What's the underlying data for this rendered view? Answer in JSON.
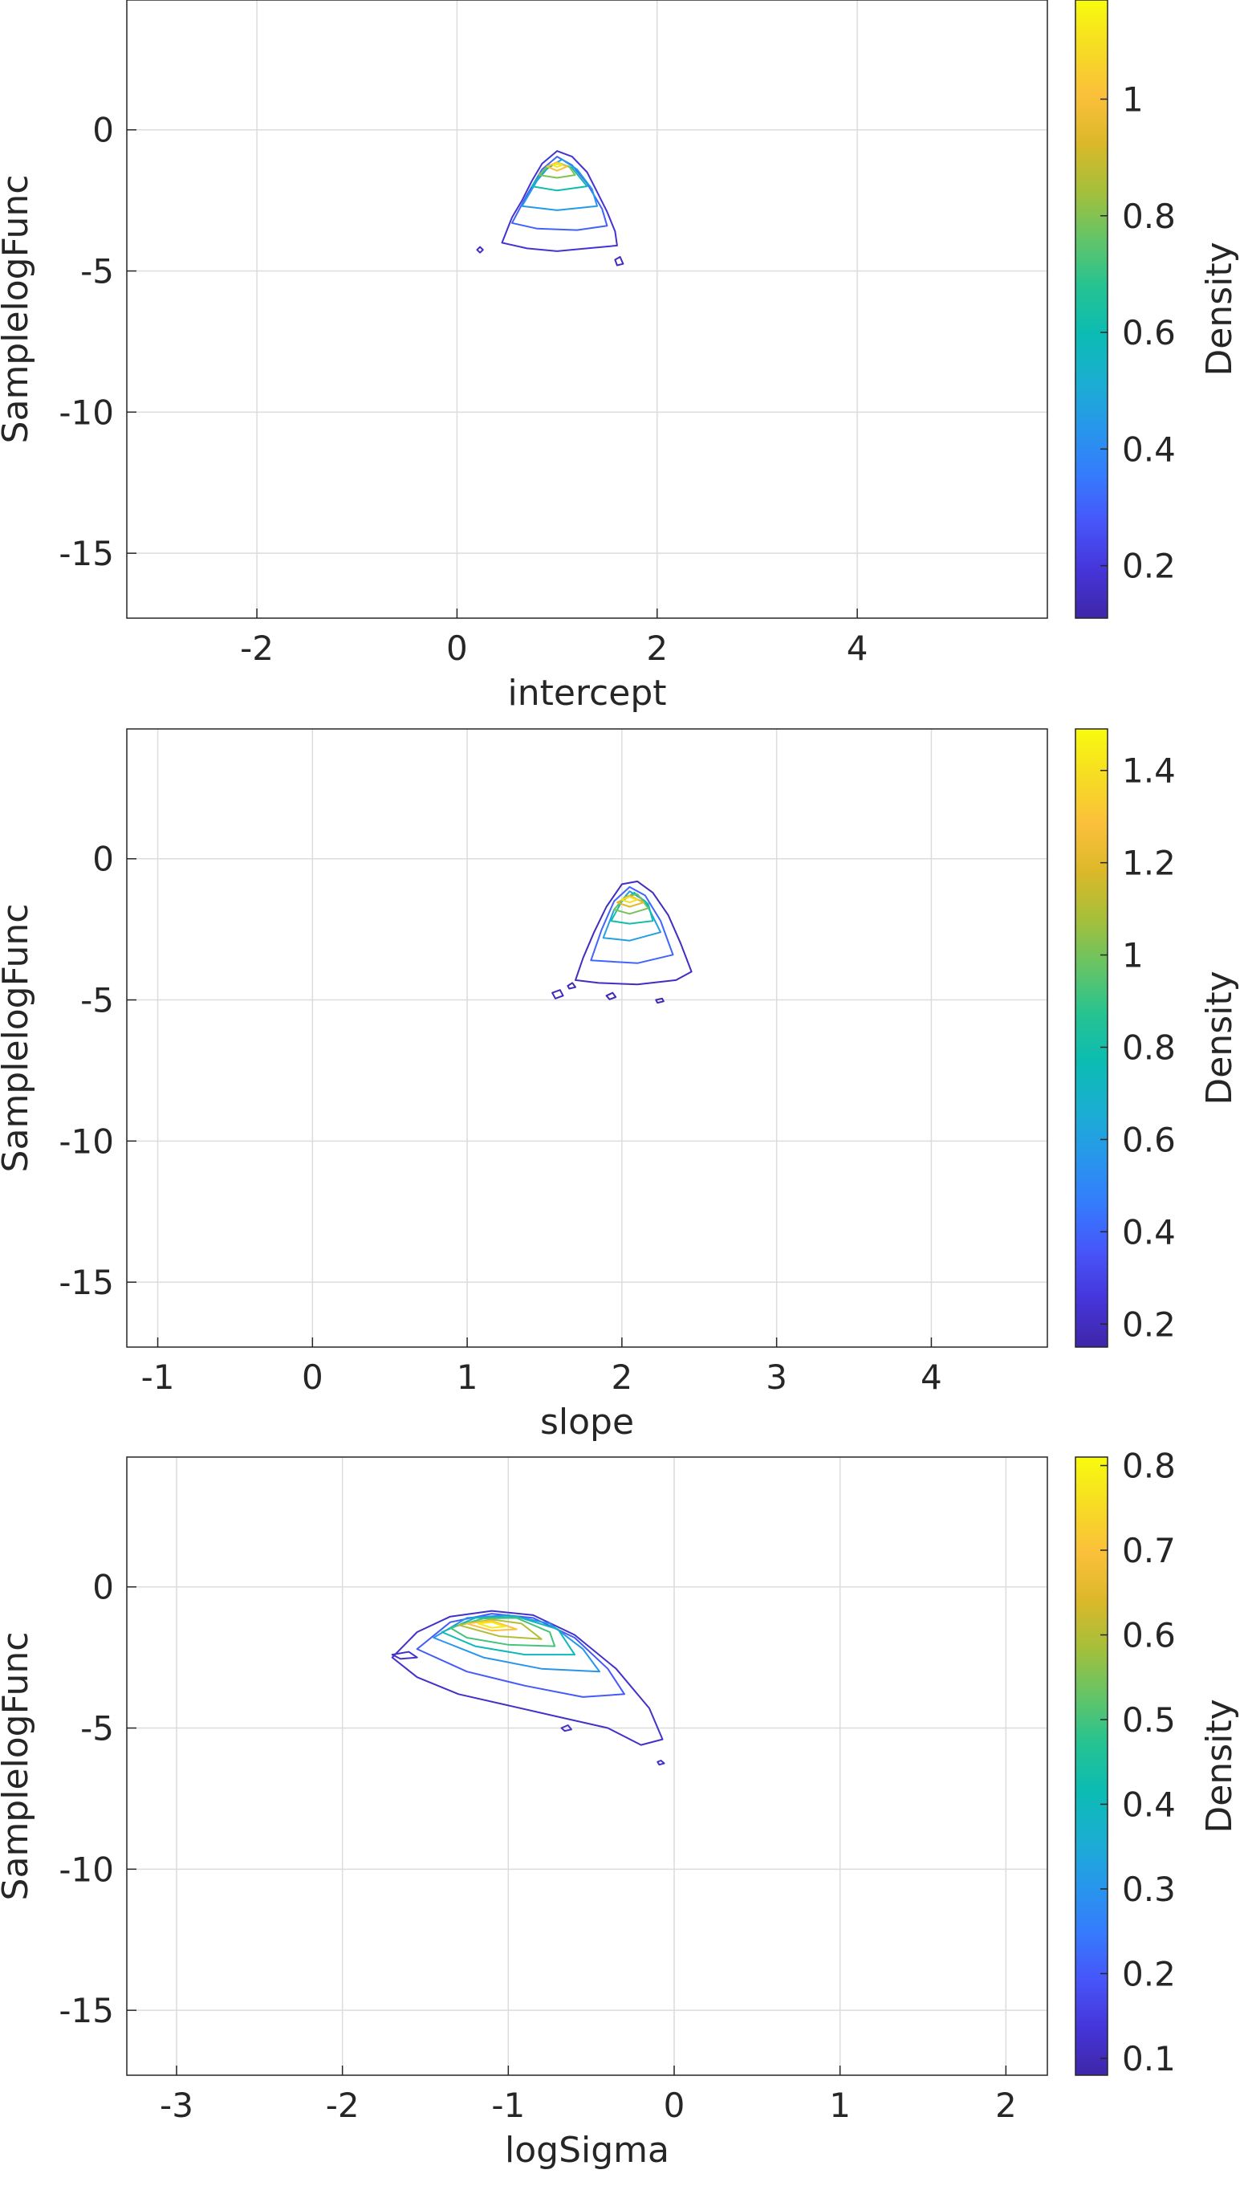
{
  "colormap": [
    "#3e26a8",
    "#4535d9",
    "#4755f9",
    "#357bfd",
    "#2797eb",
    "#1aafd1",
    "#0cbcb2",
    "#26c391",
    "#65c466",
    "#a6bf3a",
    "#dcb829",
    "#fbc03b",
    "#f6dc23",
    "#f9fb0e"
  ],
  "chart_data": [
    {
      "type": "contour",
      "xlabel": "intercept",
      "ylabel": "SamplelogFunc",
      "colorbar_label": "Density",
      "xlim": [
        -3.3,
        5.9
      ],
      "ylim": [
        -17.3,
        4.6
      ],
      "xticks": [
        -2,
        0,
        2,
        4
      ],
      "xtick_labels": [
        "-2",
        "0",
        "2",
        "4"
      ],
      "yticks": [
        0,
        -5,
        -10,
        -15
      ],
      "ytick_labels": [
        "0",
        "-5",
        "-10",
        "-15"
      ],
      "clim": [
        0.11,
        1.17
      ],
      "cticks": [
        0.2,
        0.4,
        0.6,
        0.8,
        1
      ],
      "ctick_labels": [
        "0.2",
        "0.4",
        "0.6",
        "0.8",
        "1"
      ],
      "grid": true,
      "peak": {
        "x": 1.0,
        "y": -1.25
      },
      "contours": [
        {
          "level": 0.18,
          "x": [
            0.45,
            0.55,
            0.65,
            0.75,
            0.85,
            1.0,
            1.15,
            1.3,
            1.4,
            1.5,
            1.58,
            1.6,
            1.3,
            1.0,
            0.7,
            0.45
          ],
          "y": [
            -4.0,
            -3.1,
            -2.5,
            -1.8,
            -1.2,
            -0.75,
            -0.95,
            -1.5,
            -2.2,
            -2.9,
            -3.6,
            -4.1,
            -4.2,
            -4.3,
            -4.2,
            -4.0
          ]
        },
        {
          "level": 0.3,
          "x": [
            0.55,
            0.7,
            0.85,
            1.0,
            1.15,
            1.3,
            1.45,
            1.5,
            1.2,
            0.8,
            0.55
          ],
          "y": [
            -3.3,
            -2.3,
            -1.4,
            -0.95,
            -1.25,
            -1.9,
            -2.8,
            -3.4,
            -3.55,
            -3.5,
            -3.3
          ]
        },
        {
          "level": 0.45,
          "x": [
            0.65,
            0.8,
            0.92,
            1.05,
            1.2,
            1.35,
            1.4,
            1.0,
            0.65
          ],
          "y": [
            -2.7,
            -1.8,
            -1.3,
            -1.05,
            -1.4,
            -2.1,
            -2.7,
            -2.85,
            -2.7
          ]
        },
        {
          "level": 0.6,
          "x": [
            0.75,
            0.85,
            1.0,
            1.15,
            1.3,
            1.0,
            0.75
          ],
          "y": [
            -2.0,
            -1.5,
            -1.15,
            -1.35,
            -2.0,
            -2.15,
            -2.0
          ]
        },
        {
          "level": 0.8,
          "x": [
            0.82,
            0.9,
            1.0,
            1.12,
            1.18,
            1.0,
            0.82
          ],
          "y": [
            -1.6,
            -1.3,
            -1.2,
            -1.3,
            -1.6,
            -1.7,
            -1.6
          ]
        },
        {
          "level": 1.0,
          "x": [
            0.9,
            1.0,
            1.1,
            1.0,
            0.9
          ],
          "y": [
            -1.3,
            -1.15,
            -1.3,
            -1.45,
            -1.3
          ]
        },
        {
          "level": 1.12,
          "x": [
            0.96,
            1.0,
            1.05,
            1.0,
            0.96
          ],
          "y": [
            -1.25,
            -1.18,
            -1.25,
            -1.32,
            -1.25
          ]
        },
        {
          "level": 0.15,
          "x": [
            0.2,
            0.23,
            0.26,
            0.23,
            0.2
          ],
          "y": [
            -4.25,
            -4.15,
            -4.25,
            -4.35,
            -4.25
          ]
        },
        {
          "level": 0.15,
          "x": [
            1.58,
            1.63,
            1.66,
            1.6,
            1.58
          ],
          "y": [
            -4.6,
            -4.5,
            -4.75,
            -4.8,
            -4.6
          ]
        }
      ]
    },
    {
      "type": "contour",
      "xlabel": "slope",
      "ylabel": "SamplelogFunc",
      "colorbar_label": "Density",
      "xlim": [
        -1.2,
        4.75
      ],
      "ylim": [
        -17.3,
        4.6
      ],
      "xticks": [
        -1,
        0,
        1,
        2,
        3,
        4
      ],
      "xtick_labels": [
        "-1",
        "0",
        "1",
        "2",
        "3",
        "4"
      ],
      "yticks": [
        0,
        -5,
        -10,
        -15
      ],
      "ytick_labels": [
        "0",
        "-5",
        "-10",
        "-15"
      ],
      "clim": [
        0.15,
        1.49
      ],
      "cticks": [
        0.2,
        0.4,
        0.6,
        0.8,
        1,
        1.2,
        1.4
      ],
      "ctick_labels": [
        "0.2",
        "0.4",
        "0.6",
        "0.8",
        "1",
        "1.2",
        "1.4"
      ],
      "grid": true,
      "peak": {
        "x": 2.05,
        "y": -1.3
      },
      "contours": [
        {
          "level": 0.2,
          "x": [
            1.7,
            1.75,
            1.82,
            1.9,
            2.0,
            2.1,
            2.2,
            2.3,
            2.38,
            2.45,
            2.35,
            2.1,
            1.85,
            1.7
          ],
          "y": [
            -4.3,
            -3.5,
            -2.6,
            -1.7,
            -0.9,
            -0.8,
            -1.2,
            -2.0,
            -3.0,
            -4.0,
            -4.3,
            -4.45,
            -4.4,
            -4.3
          ]
        },
        {
          "level": 0.4,
          "x": [
            1.8,
            1.87,
            1.95,
            2.05,
            2.15,
            2.25,
            2.33,
            2.1,
            1.8
          ],
          "y": [
            -3.6,
            -2.5,
            -1.5,
            -1.0,
            -1.3,
            -2.2,
            -3.4,
            -3.7,
            -3.6
          ]
        },
        {
          "level": 0.6,
          "x": [
            1.88,
            1.95,
            2.05,
            2.15,
            2.25,
            2.05,
            1.88
          ],
          "y": [
            -2.8,
            -1.8,
            -1.15,
            -1.5,
            -2.6,
            -2.9,
            -2.8
          ]
        },
        {
          "level": 0.8,
          "x": [
            1.93,
            2.0,
            2.08,
            2.17,
            2.2,
            2.05,
            1.93
          ],
          "y": [
            -2.2,
            -1.5,
            -1.2,
            -1.6,
            -2.2,
            -2.3,
            -2.2
          ]
        },
        {
          "level": 1.0,
          "x": [
            1.95,
            2.02,
            2.1,
            2.17,
            2.05,
            1.95
          ],
          "y": [
            -1.8,
            -1.35,
            -1.25,
            -1.75,
            -1.95,
            -1.8
          ]
        },
        {
          "level": 1.2,
          "x": [
            1.97,
            2.05,
            2.14,
            2.05,
            1.97
          ],
          "y": [
            -1.55,
            -1.3,
            -1.55,
            -1.7,
            -1.55
          ]
        },
        {
          "level": 1.4,
          "x": [
            2.0,
            2.05,
            2.1,
            2.05,
            2.0
          ],
          "y": [
            -1.45,
            -1.35,
            -1.45,
            -1.55,
            -1.45
          ]
        },
        {
          "level": 0.18,
          "x": [
            1.55,
            1.6,
            1.62,
            1.57,
            1.55
          ],
          "y": [
            -4.75,
            -4.65,
            -4.85,
            -4.95,
            -4.75
          ]
        },
        {
          "level": 0.18,
          "x": [
            1.65,
            1.68,
            1.7,
            1.66,
            1.65
          ],
          "y": [
            -4.5,
            -4.4,
            -4.55,
            -4.6,
            -4.5
          ]
        },
        {
          "level": 0.18,
          "x": [
            1.9,
            1.94,
            1.96,
            1.92,
            1.9
          ],
          "y": [
            -4.85,
            -4.75,
            -4.9,
            -4.98,
            -4.85
          ]
        },
        {
          "level": 0.18,
          "x": [
            2.22,
            2.26,
            2.27,
            2.23,
            2.22
          ],
          "y": [
            -5.0,
            -4.95,
            -5.05,
            -5.1,
            -5.0
          ]
        }
      ]
    },
    {
      "type": "contour",
      "xlabel": "logSigma",
      "ylabel": "SamplelogFunc",
      "colorbar_label": "Density",
      "xlim": [
        -3.3,
        2.25
      ],
      "ylim": [
        -17.3,
        4.6
      ],
      "xticks": [
        -3,
        -2,
        -1,
        0,
        1,
        2
      ],
      "xtick_labels": [
        "-3",
        "-2",
        "-1",
        "0",
        "1",
        "2"
      ],
      "yticks": [
        0,
        -5,
        -10,
        -15
      ],
      "ytick_labels": [
        "0",
        "-5",
        "-10",
        "-15"
      ],
      "clim": [
        0.08,
        0.81
      ],
      "cticks": [
        0.1,
        0.2,
        0.3,
        0.4,
        0.5,
        0.6,
        0.7,
        0.8
      ],
      "ctick_labels": [
        "0.1",
        "0.2",
        "0.3",
        "0.4",
        "0.5",
        "0.6",
        "0.7",
        "0.8"
      ],
      "grid": true,
      "peak": {
        "x": -1.2,
        "y": -1.3
      },
      "contours": [
        {
          "level": 0.12,
          "x": [
            -1.7,
            -1.55,
            -1.35,
            -1.1,
            -0.85,
            -0.6,
            -0.35,
            -0.15,
            -0.07,
            -0.2,
            -0.4,
            -0.7,
            -1.0,
            -1.3,
            -1.55,
            -1.7
          ],
          "y": [
            -2.5,
            -1.6,
            -1.05,
            -0.85,
            -1.0,
            -1.7,
            -2.9,
            -4.3,
            -5.4,
            -5.6,
            -5.0,
            -4.6,
            -4.2,
            -3.8,
            -3.2,
            -2.5
          ]
        },
        {
          "level": 0.2,
          "x": [
            -1.55,
            -1.35,
            -1.1,
            -0.85,
            -0.6,
            -0.4,
            -0.3,
            -0.55,
            -0.9,
            -1.25,
            -1.55
          ],
          "y": [
            -2.2,
            -1.25,
            -0.95,
            -1.1,
            -1.8,
            -2.9,
            -3.8,
            -3.9,
            -3.5,
            -3.0,
            -2.2
          ]
        },
        {
          "level": 0.3,
          "x": [
            -1.45,
            -1.25,
            -1.0,
            -0.75,
            -0.55,
            -0.45,
            -0.8,
            -1.15,
            -1.45
          ],
          "y": [
            -1.8,
            -1.1,
            -1.0,
            -1.3,
            -2.2,
            -3.0,
            -2.9,
            -2.5,
            -1.8
          ]
        },
        {
          "level": 0.4,
          "x": [
            -1.4,
            -1.2,
            -0.95,
            -0.7,
            -0.6,
            -0.9,
            -1.2,
            -1.4
          ],
          "y": [
            -1.6,
            -1.1,
            -1.05,
            -1.5,
            -2.4,
            -2.4,
            -2.1,
            -1.6
          ]
        },
        {
          "level": 0.5,
          "x": [
            -1.35,
            -1.15,
            -0.95,
            -0.75,
            -0.72,
            -1.0,
            -1.25,
            -1.35
          ],
          "y": [
            -1.45,
            -1.12,
            -1.1,
            -1.6,
            -2.1,
            -2.05,
            -1.8,
            -1.45
          ]
        },
        {
          "level": 0.6,
          "x": [
            -1.3,
            -1.1,
            -0.92,
            -0.8,
            -1.05,
            -1.3
          ],
          "y": [
            -1.35,
            -1.15,
            -1.3,
            -1.85,
            -1.75,
            -1.35
          ]
        },
        {
          "level": 0.7,
          "x": [
            -1.25,
            -1.1,
            -0.95,
            -1.1,
            -1.25
          ],
          "y": [
            -1.3,
            -1.2,
            -1.5,
            -1.55,
            -1.3
          ]
        },
        {
          "level": 0.78,
          "x": [
            -1.18,
            -1.1,
            -1.02,
            -1.1,
            -1.18
          ],
          "y": [
            -1.3,
            -1.25,
            -1.4,
            -1.45,
            -1.3
          ]
        },
        {
          "level": 0.12,
          "x": [
            -1.7,
            -1.6,
            -1.55,
            -1.65,
            -1.7
          ],
          "y": [
            -2.4,
            -2.3,
            -2.5,
            -2.55,
            -2.4
          ]
        },
        {
          "level": 0.12,
          "x": [
            -0.1,
            -0.08,
            -0.06,
            -0.09,
            -0.1
          ],
          "y": [
            -6.2,
            -6.15,
            -6.25,
            -6.3,
            -6.2
          ]
        },
        {
          "level": 0.12,
          "x": [
            -0.68,
            -0.64,
            -0.62,
            -0.66,
            -0.68
          ],
          "y": [
            -5.0,
            -4.9,
            -5.05,
            -5.1,
            -5.0
          ]
        }
      ]
    }
  ]
}
